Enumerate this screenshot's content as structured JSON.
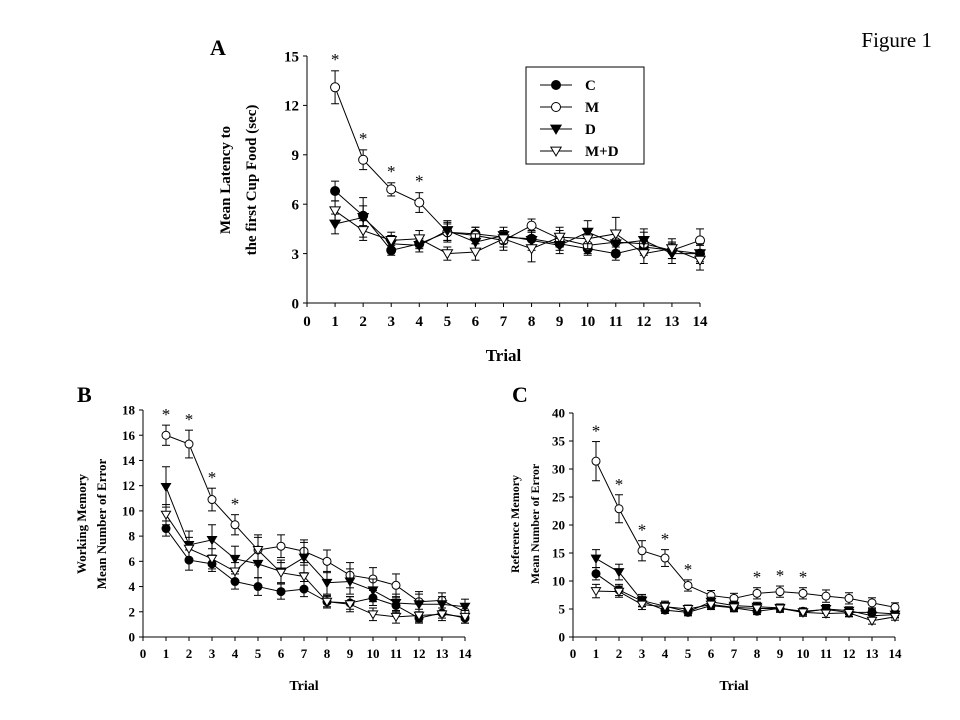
{
  "figure_label": "Figure 1",
  "chart_data": [
    {
      "panel": "A",
      "type": "line",
      "xlabel": "Trial",
      "ylabel": [
        "Mean Latency to",
        "the first Cup Food (sec)"
      ],
      "xlim": [
        0,
        14
      ],
      "ylim": [
        0,
        15
      ],
      "x_ticks": [
        0,
        1,
        2,
        3,
        4,
        5,
        6,
        7,
        8,
        9,
        10,
        11,
        12,
        13,
        14
      ],
      "y_ticks": [
        0,
        3,
        6,
        9,
        12,
        15
      ],
      "x": [
        1,
        2,
        3,
        4,
        5,
        6,
        7,
        8,
        9,
        10,
        11,
        12,
        13,
        14
      ],
      "legend_placement": "top-right",
      "series": [
        {
          "name": "C",
          "marker": "filled-circle",
          "values": [
            6.8,
            5.3,
            3.2,
            3.6,
            4.3,
            4.2,
            4.0,
            3.9,
            3.6,
            3.3,
            3.0,
            3.4,
            3.2,
            3.0
          ],
          "errors": [
            0.6,
            0.6,
            0.3,
            0.3,
            0.5,
            0.4,
            0.4,
            0.4,
            0.4,
            0.3,
            0.4,
            0.4,
            0.5,
            0.5
          ]
        },
        {
          "name": "M",
          "marker": "open-circle",
          "values": [
            13.1,
            8.7,
            6.9,
            6.1,
            4.3,
            4.1,
            3.8,
            4.7,
            3.9,
            3.5,
            3.7,
            3.6,
            3.2,
            3.8
          ],
          "errors": [
            1.0,
            0.6,
            0.4,
            0.6,
            0.6,
            0.5,
            0.6,
            0.4,
            0.5,
            0.6,
            0.7,
            0.7,
            0.5,
            0.7
          ]
        },
        {
          "name": "D",
          "marker": "filled-triangle",
          "values": [
            4.8,
            5.2,
            3.6,
            3.5,
            4.4,
            3.7,
            4.1,
            3.8,
            3.5,
            4.3,
            3.6,
            3.8,
            3.0,
            3.0
          ],
          "errors": [
            0.6,
            1.2,
            0.5,
            0.4,
            0.6,
            0.5,
            0.5,
            0.6,
            0.5,
            0.7,
            0.7,
            0.7,
            0.6,
            0.6
          ]
        },
        {
          "name": "M+D",
          "marker": "open-triangle",
          "values": [
            5.6,
            4.4,
            3.8,
            3.9,
            3.0,
            3.1,
            3.9,
            3.3,
            4.0,
            3.9,
            4.2,
            3.0,
            3.3,
            2.6
          ],
          "errors": [
            0.6,
            0.6,
            0.5,
            0.5,
            0.4,
            0.5,
            0.5,
            0.8,
            0.6,
            0.6,
            1.0,
            0.6,
            0.6,
            0.6
          ]
        }
      ],
      "significance_x": [
        1,
        2,
        3,
        4
      ],
      "significance_mark": "*"
    },
    {
      "panel": "B",
      "type": "line",
      "xlabel": "Trial",
      "ylabel": [
        "Working Memory",
        "Mean Number of Error"
      ],
      "xlim": [
        0,
        14
      ],
      "ylim": [
        0,
        18
      ],
      "x_ticks": [
        0,
        1,
        2,
        3,
        4,
        5,
        6,
        7,
        8,
        9,
        10,
        11,
        12,
        13,
        14
      ],
      "y_ticks": [
        0,
        2,
        4,
        6,
        8,
        10,
        12,
        14,
        16,
        18
      ],
      "x": [
        1,
        2,
        3,
        4,
        5,
        6,
        7,
        8,
        9,
        10,
        11,
        12,
        13,
        14
      ],
      "series": [
        {
          "name": "C",
          "marker": "filled-circle",
          "values": [
            8.6,
            6.1,
            5.8,
            4.4,
            4.0,
            3.6,
            3.8,
            2.8,
            2.7,
            3.1,
            2.5,
            1.5,
            1.9,
            1.5
          ],
          "errors": [
            0.6,
            0.8,
            0.6,
            0.6,
            0.7,
            0.6,
            0.6,
            0.4,
            0.5,
            0.6,
            0.6,
            0.4,
            0.4,
            0.4
          ]
        },
        {
          "name": "M",
          "marker": "open-circle",
          "values": [
            16.0,
            15.3,
            10.9,
            8.9,
            6.9,
            7.2,
            6.8,
            6.0,
            4.9,
            4.6,
            4.1,
            2.8,
            2.9,
            2.0
          ],
          "errors": [
            0.8,
            1.1,
            0.9,
            0.8,
            1.2,
            0.9,
            0.9,
            0.9,
            1.0,
            0.9,
            0.9,
            0.8,
            0.6,
            0.6
          ]
        },
        {
          "name": "D",
          "marker": "filled-triangle",
          "values": [
            11.9,
            7.3,
            7.7,
            6.2,
            5.8,
            5.2,
            6.3,
            4.3,
            4.4,
            3.7,
            2.7,
            2.6,
            2.6,
            2.4
          ],
          "errors": [
            1.6,
            1.1,
            1.2,
            1.0,
            1.1,
            0.9,
            1.2,
            0.9,
            1.0,
            0.9,
            0.7,
            0.8,
            0.6,
            0.6
          ]
        },
        {
          "name": "M+D",
          "marker": "open-triangle",
          "values": [
            9.7,
            7.0,
            6.2,
            5.2,
            6.9,
            5.1,
            4.8,
            2.8,
            2.6,
            1.8,
            1.6,
            1.7,
            1.8,
            1.6
          ],
          "errors": [
            0.8,
            0.9,
            0.8,
            0.7,
            1.0,
            0.8,
            0.9,
            0.5,
            0.6,
            0.5,
            0.5,
            0.5,
            0.5,
            0.5
          ]
        }
      ],
      "significance_x": [
        1,
        2,
        3,
        4
      ],
      "significance_mark": "*"
    },
    {
      "panel": "C",
      "type": "line",
      "xlabel": "Trial",
      "ylabel": [
        "Reference Memory",
        "Mean Number of Error"
      ],
      "xlim": [
        0,
        14
      ],
      "ylim": [
        0,
        40
      ],
      "x_ticks": [
        0,
        1,
        2,
        3,
        4,
        5,
        6,
        7,
        8,
        9,
        10,
        11,
        12,
        13,
        14
      ],
      "y_ticks": [
        0,
        5,
        10,
        15,
        20,
        25,
        30,
        35,
        40
      ],
      "x": [
        1,
        2,
        3,
        4,
        5,
        6,
        7,
        8,
        9,
        10,
        11,
        12,
        13,
        14
      ],
      "series": [
        {
          "name": "C",
          "marker": "filled-circle",
          "values": [
            11.3,
            8.4,
            6.4,
            4.8,
            4.4,
            5.6,
            5.2,
            4.6,
            5.1,
            4.6,
            4.9,
            4.4,
            4.4,
            4.1
          ],
          "errors": [
            1.1,
            1.0,
            0.9,
            0.6,
            0.6,
            0.7,
            0.7,
            0.6,
            0.6,
            0.6,
            0.7,
            0.7,
            0.6,
            0.6
          ]
        },
        {
          "name": "M",
          "marker": "open-circle",
          "values": [
            31.4,
            22.9,
            15.4,
            14.1,
            9.2,
            7.4,
            6.9,
            7.8,
            8.1,
            7.8,
            7.3,
            6.9,
            6.1,
            5.3
          ],
          "errors": [
            3.5,
            2.5,
            1.8,
            1.5,
            1.0,
            0.9,
            0.9,
            1.0,
            1.0,
            1.0,
            1.1,
            1.0,
            0.9,
            0.8
          ]
        },
        {
          "name": "D",
          "marker": "filled-triangle",
          "values": [
            14.0,
            11.6,
            6.5,
            5.5,
            4.5,
            6.3,
            5.6,
            5.4,
            5.2,
            4.4,
            5.0,
            4.7,
            3.8,
            4.0
          ],
          "errors": [
            1.6,
            1.4,
            1.1,
            0.9,
            0.7,
            0.8,
            0.8,
            0.8,
            0.7,
            0.7,
            0.8,
            0.7,
            0.6,
            0.6
          ]
        },
        {
          "name": "M+D",
          "marker": "open-triangle",
          "values": [
            8.2,
            8.1,
            5.8,
            5.4,
            5.0,
            5.8,
            5.3,
            5.1,
            5.1,
            4.4,
            4.2,
            4.3,
            2.9,
            3.6
          ],
          "errors": [
            1.2,
            1.0,
            0.9,
            0.8,
            0.7,
            0.8,
            0.7,
            0.7,
            0.7,
            0.6,
            0.7,
            0.7,
            0.6,
            0.6
          ]
        }
      ],
      "significance_x": [
        1,
        2,
        3,
        4,
        5,
        8,
        9,
        10
      ],
      "significance_mark": "*"
    }
  ]
}
